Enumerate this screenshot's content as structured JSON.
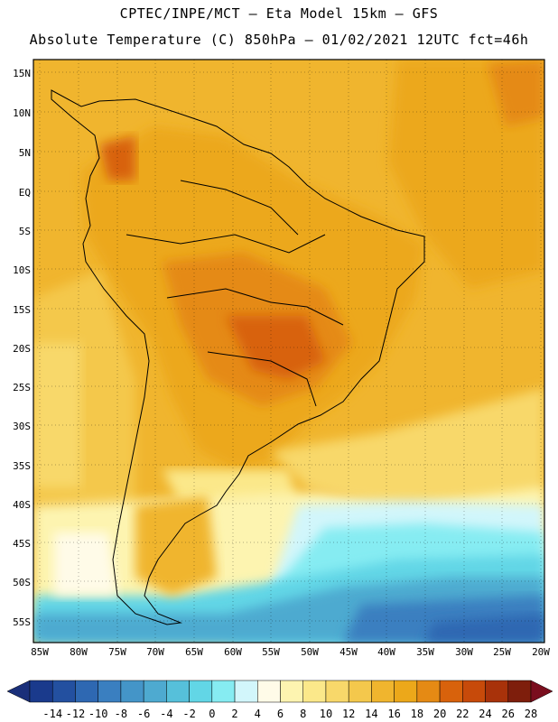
{
  "header": {
    "title_line1": "CPTEC/INPE/MCT –  Eta Model 15km – GFS",
    "title_line2": "Absolute Temperature (C) 850hPa – 01/02/2021 12UTC fct=46h"
  },
  "map": {
    "variable": "Absolute Temperature",
    "units": "C",
    "level": "850hPa",
    "lat_labels": [
      "15N",
      "10N",
      "5N",
      "EQ",
      "5S",
      "10S",
      "15S",
      "20S",
      "25S",
      "30S",
      "35S",
      "40S",
      "45S",
      "50S",
      "55S"
    ],
    "lon_labels": [
      "85W",
      "80W",
      "75W",
      "70W",
      "65W",
      "60W",
      "55W",
      "50W",
      "45W",
      "40W",
      "35W",
      "30W",
      "25W",
      "20W"
    ]
  },
  "colorbar": {
    "labels": [
      "-14",
      "-12",
      "-10",
      "-8",
      "-6",
      "-4",
      "-2",
      "0",
      "2",
      "4",
      "6",
      "8",
      "10",
      "12",
      "14",
      "16",
      "18",
      "20",
      "22",
      "24",
      "26",
      "28"
    ],
    "colors": [
      "#1a3a8c",
      "#2350a0",
      "#2e68b2",
      "#3a7fc0",
      "#4495c8",
      "#4eaad0",
      "#56c0da",
      "#62d6e6",
      "#86ecf2",
      "#d2f6fb",
      "#fffbe8",
      "#fdf4b0",
      "#fbe88a",
      "#f8d86a",
      "#f4c84c",
      "#f0b52e",
      "#eca81a",
      "#e58a14",
      "#d8620c",
      "#c74a0a",
      "#a8320a",
      "#7e1e0c"
    ],
    "under_color": "#1a2f7a",
    "over_color": "#7a0e1e"
  }
}
